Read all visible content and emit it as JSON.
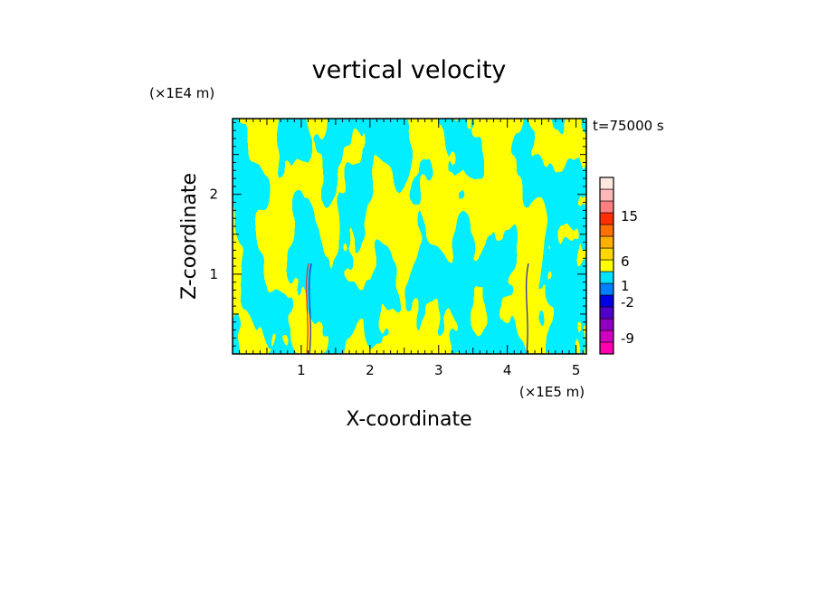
{
  "chart_data": {
    "type": "heatmap",
    "title": "vertical velocity",
    "xlabel": "X-coordinate",
    "ylabel": "Z-coordinate",
    "x_unit": "(×1E5 m)",
    "y_unit": "(×1E4 m)",
    "time_label": "t=75000 s",
    "xlim": [
      0,
      5.15
    ],
    "ylim": [
      0,
      2.95
    ],
    "x_ticks": [
      {
        "value": 1,
        "label": "1"
      },
      {
        "value": 2,
        "label": "2"
      },
      {
        "value": 3,
        "label": "3"
      },
      {
        "value": 4,
        "label": "4"
      },
      {
        "value": 5,
        "label": "5"
      }
    ],
    "y_ticks": [
      {
        "value": 1,
        "label": "1"
      },
      {
        "value": 2,
        "label": "2"
      }
    ],
    "field_colors": {
      "positive": "#ffff00",
      "negative": "#00eeff",
      "strong_positive": "#ff2020",
      "strong_negative": "#2020c0"
    },
    "colorbar": {
      "levels": [
        {
          "color": "#ff00b0"
        },
        {
          "color": "#d000c0"
        },
        {
          "color": "#9000c0"
        },
        {
          "color": "#5000c8"
        },
        {
          "color": "#0000e0"
        },
        {
          "color": "#0080ff"
        },
        {
          "color": "#00e0ff"
        },
        {
          "color": "#ffff00"
        },
        {
          "color": "#ffd700"
        },
        {
          "color": "#ffb000"
        },
        {
          "color": "#ff7000"
        },
        {
          "color": "#ff3000"
        },
        {
          "color": "#ff8080"
        },
        {
          "color": "#ffb8b8"
        },
        {
          "color": "#ffe8e0"
        }
      ],
      "labels": [
        "-9",
        "-2",
        "1",
        "6",
        "15"
      ]
    }
  }
}
